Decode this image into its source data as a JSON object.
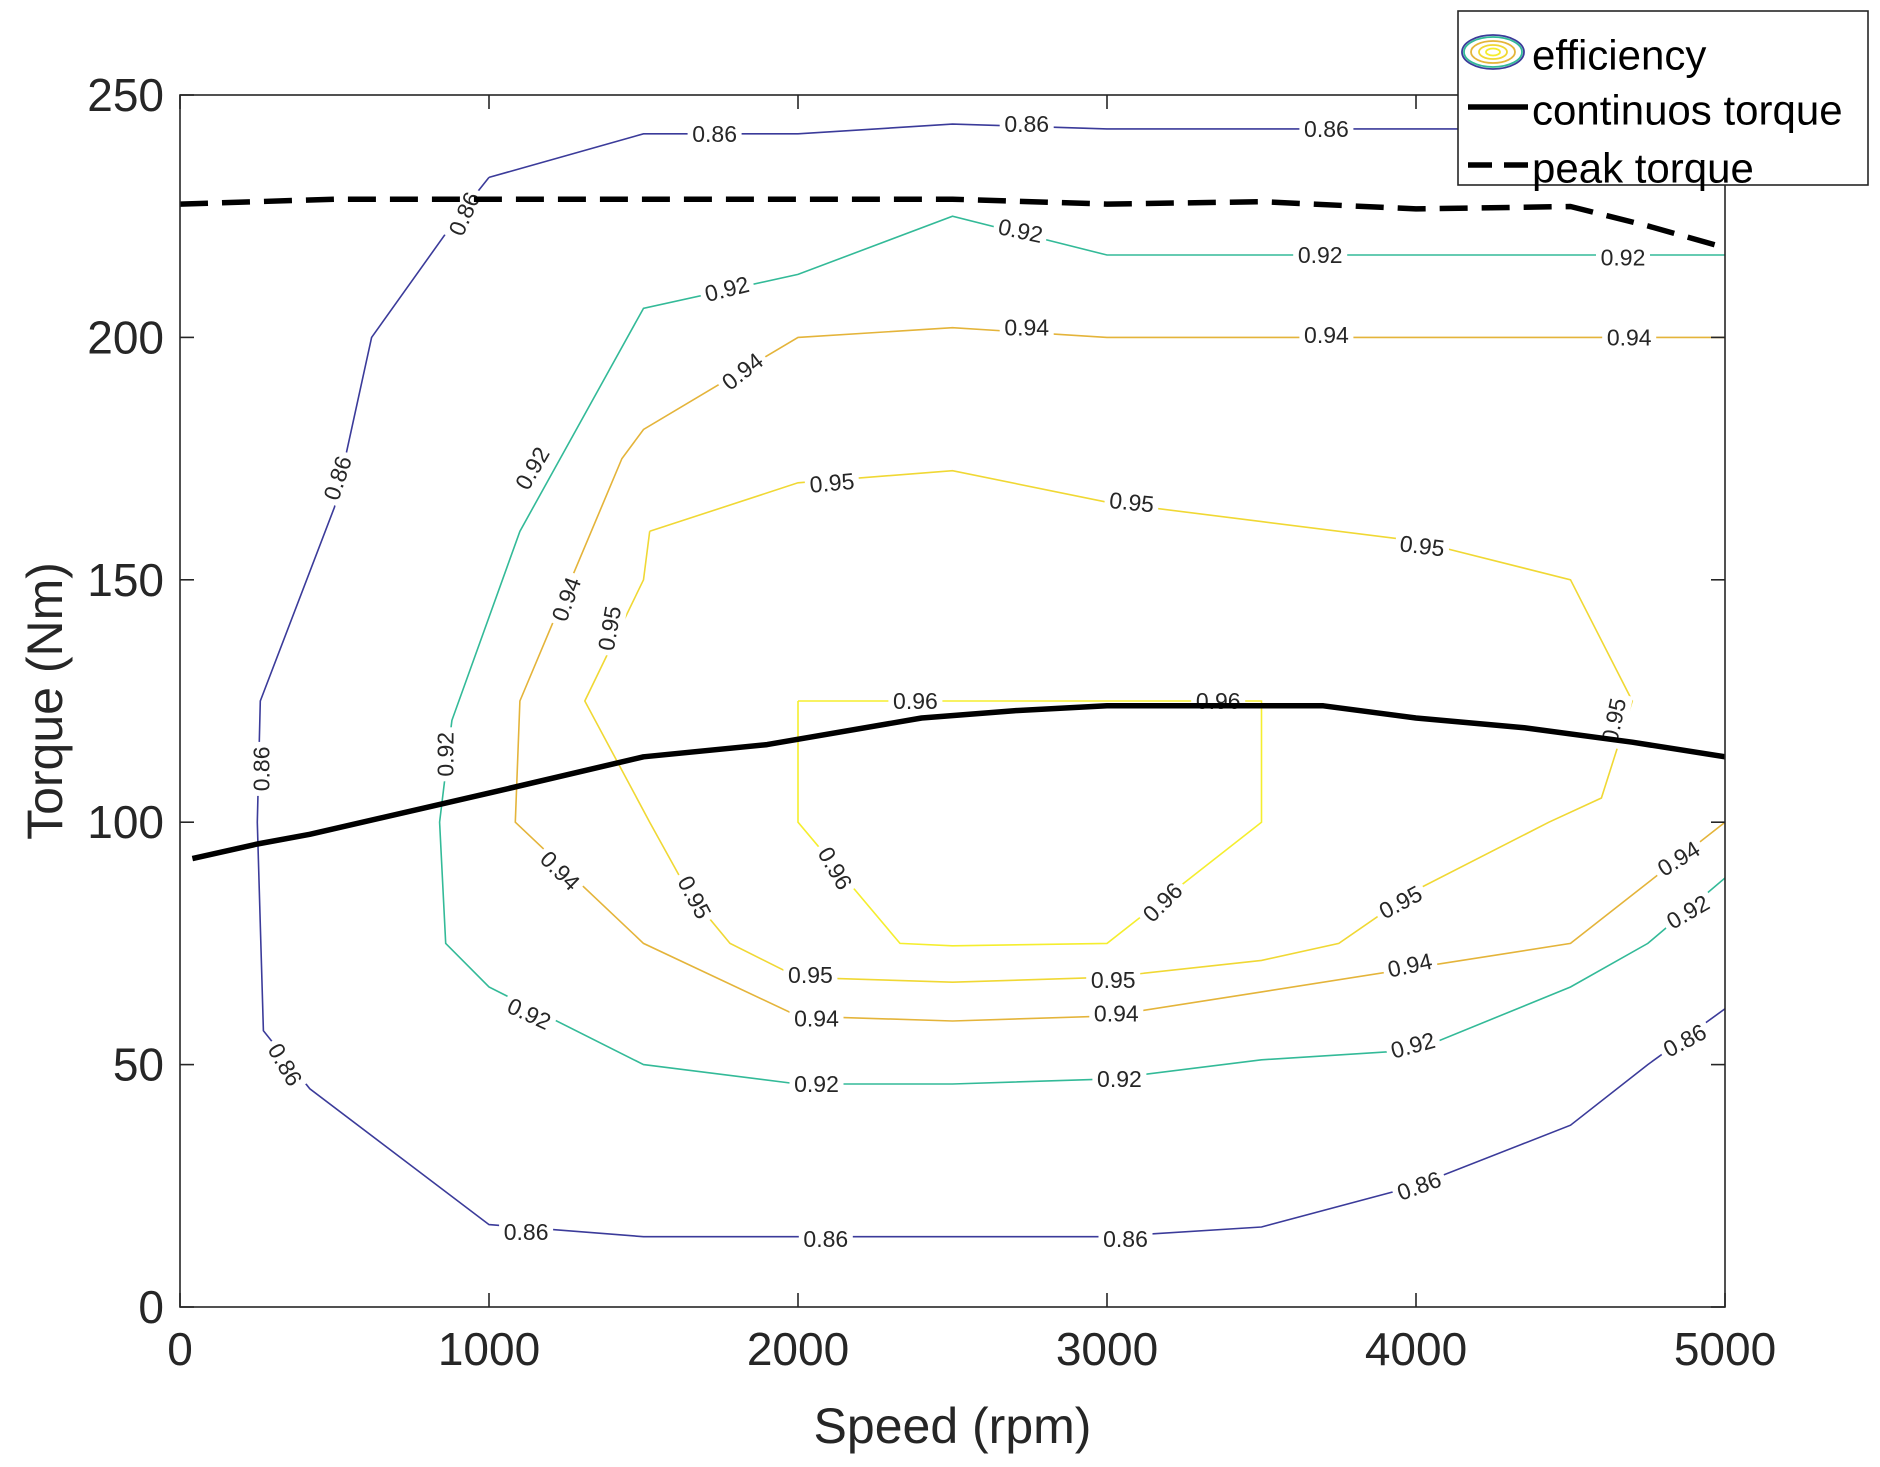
{
  "chart_data": {
    "type": "line",
    "title": "",
    "xlabel": "Speed (rpm)",
    "ylabel": "Torque (Nm)",
    "xlim": [
      0,
      5000
    ],
    "ylim": [
      0,
      250
    ],
    "xticks": [
      0,
      1000,
      2000,
      3000,
      4000,
      5000
    ],
    "yticks": [
      0,
      50,
      100,
      150,
      200,
      250
    ],
    "grid": false,
    "legend": {
      "position": "top-right",
      "entries": [
        "efficiency",
        "continuos torque",
        "peak torque"
      ]
    },
    "contours": [
      {
        "level": 0.86,
        "color": "#3b3b9a",
        "paths": [
          [
            [
              1000,
              233
            ],
            [
              1500,
              242
            ],
            [
              2000,
              242
            ],
            [
              2500,
              244
            ],
            [
              3000,
              243
            ],
            [
              4000,
              243
            ],
            [
              4250,
              243
            ]
          ],
          [
            [
              1000,
              233
            ],
            [
              900,
              225
            ],
            [
              620,
              200
            ],
            [
              500,
              165
            ],
            [
              260,
              125
            ],
            [
              250,
              100
            ],
            [
              270,
              57
            ],
            [
              420,
              45
            ],
            [
              1000,
              17
            ],
            [
              1500,
              14.5
            ],
            [
              2000,
              14.5
            ],
            [
              2500,
              14.5
            ],
            [
              3000,
              14.5
            ],
            [
              3500,
              16.5
            ],
            [
              4000,
              25
            ],
            [
              4500,
              37.5
            ],
            [
              4750,
              50
            ],
            [
              5000,
              61.5
            ]
          ]
        ],
        "labels": [
          {
            "x": 1730,
            "y": 242,
            "angle": 0
          },
          {
            "x": 2740,
            "y": 244,
            "angle": 0
          },
          {
            "x": 3710,
            "y": 243,
            "angle": 0
          },
          {
            "x": 920,
            "y": 225.5,
            "angle": -66
          },
          {
            "x": 510,
            "y": 171,
            "angle": -72
          },
          {
            "x": 263,
            "y": 111,
            "angle": -90
          },
          {
            "x": 340,
            "y": 50,
            "angle": 60
          },
          {
            "x": 1120,
            "y": 15.5,
            "angle": 0
          },
          {
            "x": 2090,
            "y": 14,
            "angle": 0
          },
          {
            "x": 3060,
            "y": 14,
            "angle": 0
          },
          {
            "x": 4010,
            "y": 25,
            "angle": -20
          },
          {
            "x": 4870,
            "y": 55,
            "angle": -28
          }
        ]
      },
      {
        "level": 0.92,
        "color": "#33ba98",
        "paths": [
          [
            [
              5000,
              217
            ],
            [
              4500,
              217
            ],
            [
              3000,
              217
            ],
            [
              2500,
              225
            ],
            [
              2000,
              213
            ],
            [
              1500,
              206
            ],
            [
              1100,
              160
            ],
            [
              880,
              121
            ],
            [
              840,
              100
            ],
            [
              860,
              75
            ],
            [
              1000,
              66
            ],
            [
              1500,
              50
            ],
            [
              2000,
              46
            ],
            [
              2500,
              46
            ],
            [
              3000,
              47
            ],
            [
              3500,
              51
            ],
            [
              4000,
              53
            ],
            [
              4500,
              66
            ],
            [
              4750,
              75
            ],
            [
              5000,
              88.5
            ]
          ]
        ],
        "labels": [
          {
            "x": 2720,
            "y": 222,
            "angle": 12
          },
          {
            "x": 3690,
            "y": 217,
            "angle": 0
          },
          {
            "x": 4670,
            "y": 216.5,
            "angle": 0
          },
          {
            "x": 1770,
            "y": 210,
            "angle": -14
          },
          {
            "x": 1140,
            "y": 173,
            "angle": -60
          },
          {
            "x": 860,
            "y": 114,
            "angle": -90
          },
          {
            "x": 1130,
            "y": 60.5,
            "angle": 25
          },
          {
            "x": 2060,
            "y": 46,
            "angle": 0
          },
          {
            "x": 3040,
            "y": 47,
            "angle": 0
          },
          {
            "x": 3990,
            "y": 54,
            "angle": -15
          },
          {
            "x": 4880,
            "y": 81.5,
            "angle": -30
          }
        ]
      },
      {
        "level": 0.94,
        "color": "#e4b43a",
        "paths": [
          [
            [
              5000,
              200
            ],
            [
              3000,
              200
            ],
            [
              2500,
              202
            ],
            [
              2000,
              200
            ],
            [
              1500,
              181
            ],
            [
              1430,
              175
            ],
            [
              1100,
              125
            ],
            [
              1085,
              100
            ],
            [
              1500,
              75
            ],
            [
              2000,
              60
            ],
            [
              2500,
              59
            ],
            [
              3000,
              60
            ],
            [
              3500,
              65
            ],
            [
              4000,
              70
            ],
            [
              4500,
              75
            ],
            [
              5000,
              100
            ]
          ]
        ],
        "labels": [
          {
            "x": 2740,
            "y": 202,
            "angle": 0
          },
          {
            "x": 3710,
            "y": 200.5,
            "angle": 0
          },
          {
            "x": 4690,
            "y": 200,
            "angle": 0
          },
          {
            "x": 1820,
            "y": 193,
            "angle": -38
          },
          {
            "x": 1250,
            "y": 146,
            "angle": -70
          },
          {
            "x": 1230,
            "y": 90,
            "angle": 45
          },
          {
            "x": 2060,
            "y": 59.5,
            "angle": 0
          },
          {
            "x": 3030,
            "y": 60.5,
            "angle": 0
          },
          {
            "x": 3980,
            "y": 70.5,
            "angle": -12
          },
          {
            "x": 4850,
            "y": 92.5,
            "angle": -32
          }
        ]
      },
      {
        "level": 0.95,
        "color": "#f0d834",
        "paths": [
          [
            [
              1520,
              160
            ],
            [
              2000,
              170
            ],
            [
              2500,
              172.5
            ],
            [
              3000,
              166
            ],
            [
              3500,
              162
            ],
            [
              4000,
              158
            ],
            [
              4500,
              150
            ],
            [
              4700,
              125
            ],
            [
              4600,
              105
            ],
            [
              4430,
              100
            ],
            [
              4000,
              86
            ],
            [
              3750,
              75
            ],
            [
              3500,
              71.5
            ],
            [
              3000,
              68
            ],
            [
              2500,
              67
            ],
            [
              2000,
              68
            ],
            [
              1780,
              75
            ],
            [
              1650,
              85
            ],
            [
              1520,
              100
            ],
            [
              1310,
              125
            ],
            [
              1500,
              150
            ],
            [
              1520,
              160
            ]
          ]
        ],
        "labels": [
          {
            "x": 2110,
            "y": 170,
            "angle": -5
          },
          {
            "x": 3080,
            "y": 166,
            "angle": 6
          },
          {
            "x": 4020,
            "y": 157,
            "angle": 7
          },
          {
            "x": 1390,
            "y": 140,
            "angle": -80
          },
          {
            "x": 1665,
            "y": 84.5,
            "angle": 62
          },
          {
            "x": 2040,
            "y": 68.5,
            "angle": 0
          },
          {
            "x": 3020,
            "y": 67.5,
            "angle": 0
          },
          {
            "x": 3950,
            "y": 83.5,
            "angle": -28
          },
          {
            "x": 4640,
            "y": 121,
            "angle": -78
          }
        ]
      },
      {
        "level": 0.96,
        "color": "#f5ee2e",
        "paths": [
          [
            [
              2000,
              125
            ],
            [
              2500,
              125
            ],
            [
              3000,
              125
            ],
            [
              3500,
              125
            ],
            [
              3500,
              100
            ],
            [
              3000,
              75
            ],
            [
              2500,
              74.5
            ],
            [
              2330,
              75
            ],
            [
              2000,
              100
            ],
            [
              2000,
              125
            ]
          ]
        ],
        "labels": [
          {
            "x": 2380,
            "y": 125,
            "angle": 0
          },
          {
            "x": 3360,
            "y": 125,
            "angle": 0
          },
          {
            "x": 2120,
            "y": 90.5,
            "angle": 60
          },
          {
            "x": 3180,
            "y": 83.5,
            "angle": -45
          }
        ]
      }
    ],
    "series": [
      {
        "name": "continuos torque",
        "style": "solid",
        "x": [
          40,
          250,
          420,
          1000,
          1500,
          1900,
          2400,
          2700,
          3000,
          3300,
          3700,
          4000,
          4350,
          4700,
          5000
        ],
        "y": [
          92.5,
          95.5,
          97.5,
          106,
          113.5,
          116,
          121.5,
          123,
          124,
          124,
          124,
          121.5,
          119.5,
          116.5,
          113.5
        ]
      },
      {
        "name": "peak torque",
        "style": "dashed",
        "x": [
          0,
          500,
          1000,
          1500,
          2000,
          2500,
          3000,
          3500,
          4000,
          4500,
          4750,
          5000
        ],
        "y": [
          227.5,
          228.5,
          228.5,
          228.5,
          228.5,
          228.5,
          227.5,
          228,
          226.5,
          227,
          223,
          218.5
        ]
      }
    ],
    "line_color": "#000000"
  }
}
